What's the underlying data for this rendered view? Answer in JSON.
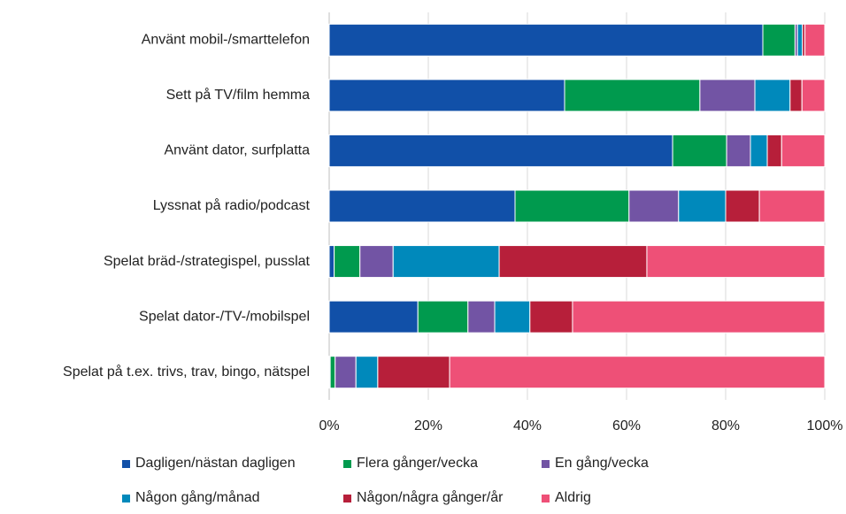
{
  "chart_data": {
    "type": "stacked-barh",
    "categories": [
      "Använt mobil-/smarttelefon",
      "Sett på TV/film hemma",
      "Använt dator, surfplatta",
      "Lyssnat på radio/podcast",
      "Spelat bräd-/strategispel, pusslat",
      "Spelat dator-/TV-/mobilspel",
      "Spelat på t.ex. trivs, trav, bingo, nätspel"
    ],
    "series": [
      {
        "name": "Dagligen/nästan dagligen",
        "color": "#1150a8",
        "values": [
          87.5,
          47.5,
          69.3,
          37.5,
          1,
          17.9,
          0.2
        ]
      },
      {
        "name": "Flera gånger/vecka",
        "color": "#009a4e",
        "values": [
          6.5,
          27.3,
          10.9,
          23,
          5.2,
          10.1,
          1
        ]
      },
      {
        "name": "En gång/vecka",
        "color": "#7254a4",
        "values": [
          0.5,
          11.1,
          4.8,
          10,
          6.7,
          5.4,
          4.2
        ]
      },
      {
        "name": "Någon gång/månad",
        "color": "#0089bb",
        "values": [
          1,
          7.1,
          3.4,
          9.5,
          21.4,
          7.1,
          4.4
        ]
      },
      {
        "name": "Någon/några gånger/år",
        "color": "#b71f3a",
        "values": [
          0.5,
          2.4,
          2.9,
          6.8,
          29.8,
          8.6,
          14.5
        ]
      },
      {
        "name": "Aldrig",
        "color": "#ee5077",
        "values": [
          4,
          4.6,
          8.7,
          13.2,
          35.9,
          50.9,
          75.7
        ]
      }
    ],
    "xlim": [
      0,
      100
    ],
    "xticks": [
      {
        "value": 0,
        "label": "0%"
      },
      {
        "value": 20,
        "label": "20%"
      },
      {
        "value": 40,
        "label": "40%"
      },
      {
        "value": 60,
        "label": "60%"
      },
      {
        "value": 80,
        "label": "80%"
      },
      {
        "value": 100,
        "label": "100%"
      }
    ],
    "grid": true
  }
}
